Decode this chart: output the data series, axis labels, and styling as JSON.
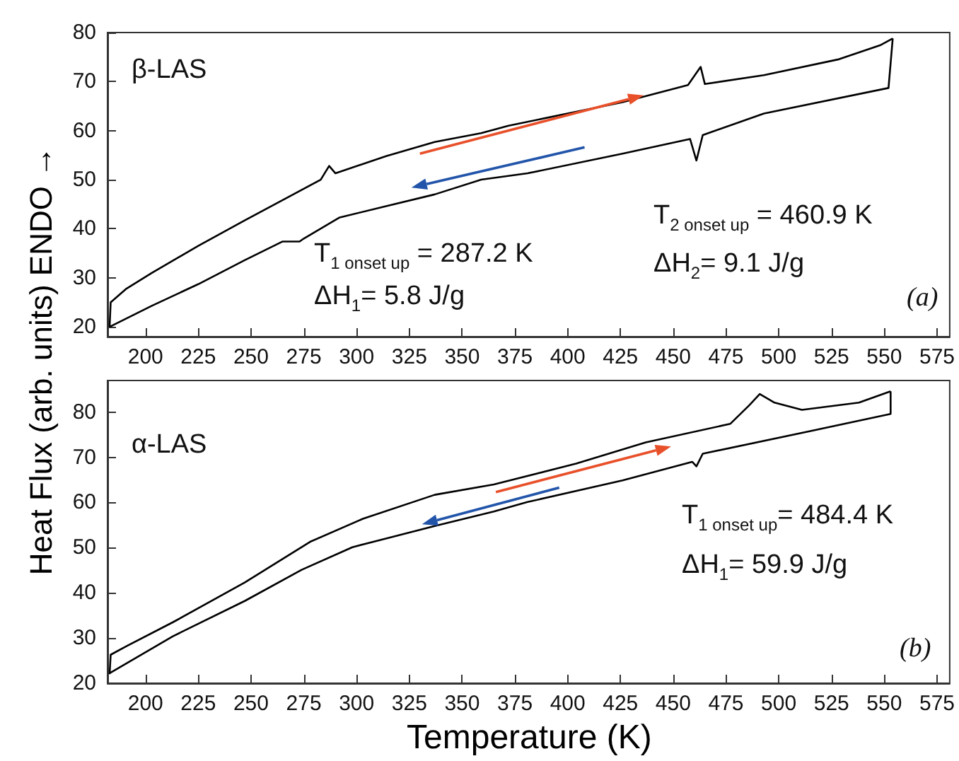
{
  "chart_data": [
    {
      "type": "line",
      "ylabel": "Heat Flux (arb. units)  ENDO →",
      "xlim": [
        182,
        581
      ],
      "ylim": [
        18,
        80
      ],
      "xticks": [
        200,
        225,
        250,
        275,
        300,
        325,
        350,
        375,
        400,
        425,
        450,
        475,
        500,
        525,
        550,
        575
      ],
      "yticks": [
        20,
        30,
        40,
        50,
        60,
        70,
        80
      ],
      "annotations": [
        "β-LAS",
        "T$_{1 onset up}$ = 287.2 K",
        "ΔH$_{1}$= 5.8 J/g",
        "T$_{2 onset up}$ = 460.9 K",
        "ΔH$_{2}$= 9.1 J/g",
        "(a)"
      ],
      "series": [
        {
          "color": "#000000",
          "x": [
            183,
            183.5,
            191,
            203,
            225,
            247,
            270,
            283,
            287,
            290,
            314,
            337,
            359,
            372,
            426,
            457,
            463,
            465,
            493,
            528,
            548,
            554
          ],
          "values": [
            20,
            25,
            27.8,
            31,
            36.5,
            41.7,
            47,
            50,
            52.8,
            51.3,
            54.8,
            57.7,
            59.5,
            61,
            65.8,
            69.3,
            73,
            69.5,
            71.3,
            74.5,
            77.4,
            78.8
          ]
        },
        {
          "color": "#000000",
          "x": [
            554,
            552,
            493,
            464,
            461,
            458,
            426,
            381,
            359,
            337,
            314,
            292,
            275,
            273,
            265,
            247,
            225,
            203,
            183
          ],
          "values": [
            78.8,
            68.7,
            63.5,
            59.1,
            53.9,
            58.3,
            55.3,
            51.3,
            50,
            47,
            44.6,
            42.3,
            38,
            37.4,
            37.4,
            33.6,
            28.7,
            24.3,
            20
          ]
        }
      ]
    },
    {
      "type": "line",
      "xlabel": "Temperature (K)",
      "xlim": [
        182,
        581
      ],
      "ylim": [
        20,
        87
      ],
      "xticks": [
        200,
        225,
        250,
        275,
        300,
        325,
        350,
        375,
        400,
        425,
        450,
        475,
        500,
        525,
        550,
        575
      ],
      "yticks": [
        20,
        30,
        40,
        50,
        60,
        70,
        80
      ],
      "annotations": [
        "α-LAS",
        "T$_{1 onset up}$= 484.4 K",
        "ΔH$_{1}$= 59.9 J/g",
        "(b)"
      ],
      "series": [
        {
          "color": "#000000",
          "x": [
            183,
            183.5,
            191,
            213,
            247,
            278,
            303,
            337,
            365,
            404,
            437,
            477,
            486,
            491,
            498,
            511,
            538,
            553
          ],
          "values": [
            22,
            26.3,
            28.2,
            33.5,
            42.3,
            51.3,
            56.4,
            61.7,
            64,
            68.6,
            73.3,
            77.4,
            81.5,
            84,
            82.1,
            80.5,
            82.1,
            84.6
          ]
        },
        {
          "color": "#000000",
          "x": [
            553,
            553,
            515,
            464,
            461,
            459,
            426,
            381,
            365,
            337,
            298,
            274,
            247,
            213,
            183
          ],
          "values": [
            84.6,
            79.6,
            75.8,
            70.8,
            68,
            69,
            64.9,
            60.1,
            58,
            54.8,
            50.1,
            45.1,
            38.2,
            30.4,
            22.2
          ]
        }
      ]
    }
  ]
}
